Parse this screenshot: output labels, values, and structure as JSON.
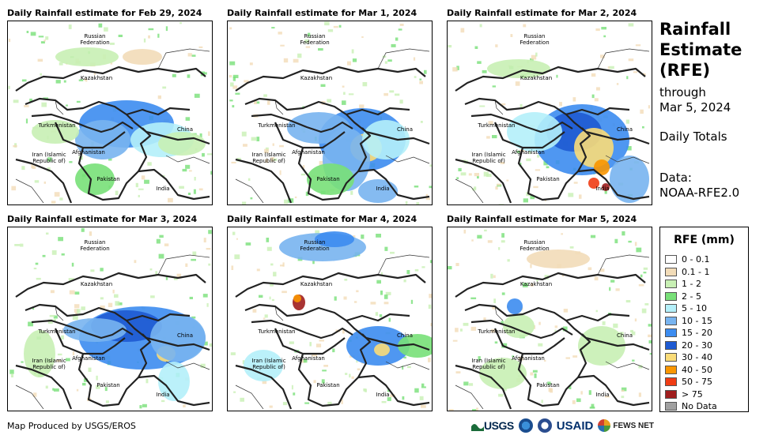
{
  "panels": [
    {
      "title": "Daily Rainfall estimate for Feb 29, 2024"
    },
    {
      "title": "Daily Rainfall estimate for Mar 1, 2024"
    },
    {
      "title": "Daily Rainfall estimate for Mar 2, 2024"
    },
    {
      "title": "Daily Rainfall estimate for Mar 3, 2024"
    },
    {
      "title": "Daily Rainfall estimate for Mar 4, 2024"
    },
    {
      "title": "Daily Rainfall estimate for Mar 5, 2024"
    }
  ],
  "map_labels": {
    "russia": "Russian Federation",
    "kazakhstan": "Kazakhstan",
    "turkmenistan": "Turkmenistan",
    "china": "China",
    "iran": "Iran (Islamic Republic of)",
    "afghanistan": "Afghanistan",
    "pakistan": "Pakistan",
    "india": "India"
  },
  "sidebar": {
    "title_lines": [
      "Rainfall",
      "Estimate",
      "(RFE)"
    ],
    "through": "through",
    "date": "Mar 5, 2024",
    "totals": "Daily Totals",
    "data_label": "Data:",
    "data_source": "NOAA-RFE2.0"
  },
  "legend": {
    "title": "RFE (mm)",
    "items": [
      {
        "label": "0 - 0.1",
        "color": "#ffffff"
      },
      {
        "label": "0.1 - 1",
        "color": "#f2dcb8"
      },
      {
        "label": "1 - 2",
        "color": "#c8f0b4"
      },
      {
        "label": "2 - 5",
        "color": "#78e078"
      },
      {
        "label": "5 - 10",
        "color": "#b4f0fa"
      },
      {
        "label": "10 - 15",
        "color": "#78b4f0"
      },
      {
        "label": "15 - 20",
        "color": "#3c8cf0"
      },
      {
        "label": "20 - 30",
        "color": "#1e5ad2"
      },
      {
        "label": "30 - 40",
        "color": "#fadc78"
      },
      {
        "label": "40 - 50",
        "color": "#fa9600"
      },
      {
        "label": "50 - 75",
        "color": "#f03c14"
      },
      {
        "label": "> 75",
        "color": "#a01e1e"
      },
      {
        "label": "No Data",
        "color": "#a0a0a0"
      }
    ]
  },
  "footer": {
    "credit": "Map Produced by USGS/EROS",
    "logos": [
      "USGS",
      "USAID",
      "FEWS NET"
    ]
  }
}
